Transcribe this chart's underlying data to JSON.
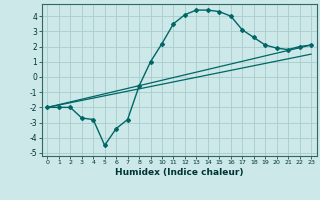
{
  "xlabel": "Humidex (Indice chaleur)",
  "ylabel": "",
  "bg_color": "#cce8e8",
  "grid_color": "#aacccc",
  "line_color": "#006666",
  "xlim": [
    -0.5,
    23.5
  ],
  "ylim": [
    -5.2,
    4.8
  ],
  "yticks": [
    -5,
    -4,
    -3,
    -2,
    -1,
    0,
    1,
    2,
    3,
    4
  ],
  "xticks": [
    0,
    1,
    2,
    3,
    4,
    5,
    6,
    7,
    8,
    9,
    10,
    11,
    12,
    13,
    14,
    15,
    16,
    17,
    18,
    19,
    20,
    21,
    22,
    23
  ],
  "curve1_x": [
    0,
    1,
    2,
    3,
    4,
    5,
    6,
    7,
    8,
    9,
    10,
    11,
    12,
    13,
    14,
    15,
    16,
    17,
    18,
    19,
    20,
    21,
    22,
    23
  ],
  "curve1_y": [
    -2.0,
    -2.0,
    -2.0,
    -2.7,
    -2.8,
    -4.5,
    -3.4,
    -2.8,
    -0.6,
    1.0,
    2.2,
    3.5,
    4.1,
    4.4,
    4.4,
    4.3,
    4.0,
    3.1,
    2.6,
    2.1,
    1.9,
    1.8,
    2.0,
    2.1
  ],
  "line1_x": [
    0,
    23
  ],
  "line1_y": [
    -2.0,
    2.1
  ],
  "line2_x": [
    0,
    23
  ],
  "line2_y": [
    -2.0,
    1.5
  ]
}
